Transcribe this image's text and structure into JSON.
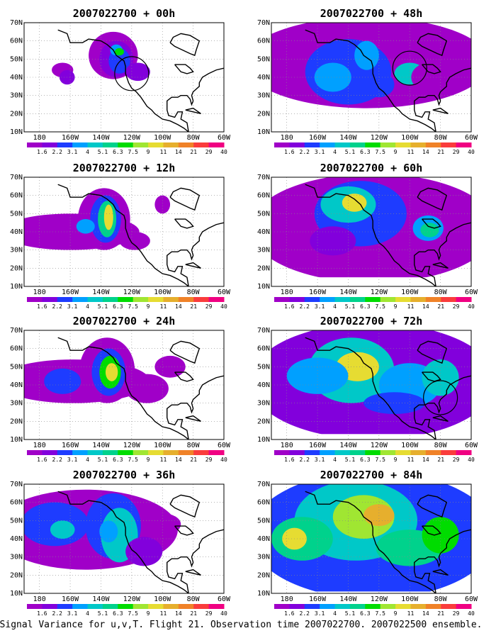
{
  "caption": "Signal Variance for u,v,T. Flight 21. Observation time 2007022700. 2007022500 ensemble.",
  "lat_ticks": [
    "10N",
    "20N",
    "30N",
    "40N",
    "50N",
    "60N",
    "70N"
  ],
  "lon_ticks": [
    "180",
    "160W",
    "140W",
    "120W",
    "100W",
    "80W",
    "60W"
  ],
  "colorbar": {
    "labels": [
      "1.6",
      "2.2",
      "3.1",
      "4",
      "5.1",
      "6.3",
      "7.5",
      "9",
      "11",
      "14",
      "21",
      "29",
      "40"
    ],
    "colors": [
      "#a000c8",
      "#8200dc",
      "#1e3cff",
      "#00a0ff",
      "#00c8c8",
      "#00d28c",
      "#00dc00",
      "#a0e632",
      "#e6dc32",
      "#e6af2d",
      "#f08228",
      "#fa3c3c",
      "#f00082"
    ]
  },
  "map_extent": {
    "lon": [
      -190,
      -60
    ],
    "lat": [
      10,
      70
    ]
  },
  "panels": [
    {
      "title": "2007022700 + 00h",
      "lead_hours": 0,
      "target_circle": {
        "lon": -120,
        "lat": 42
      }
    },
    {
      "title": "2007022700 + 12h",
      "lead_hours": 12
    },
    {
      "title": "2007022700 + 24h",
      "lead_hours": 24
    },
    {
      "title": "2007022700 + 36h",
      "lead_hours": 36
    },
    {
      "title": "2007022700 + 48h",
      "lead_hours": 48,
      "target_circle": {
        "lon": -100,
        "lat": 45
      }
    },
    {
      "title": "2007022700 + 60h",
      "lead_hours": 60
    },
    {
      "title": "2007022700 + 72h",
      "lead_hours": 72,
      "target_circle": {
        "lon": -80,
        "lat": 33
      }
    },
    {
      "title": "2007022700 + 84h",
      "lead_hours": 84
    }
  ]
}
